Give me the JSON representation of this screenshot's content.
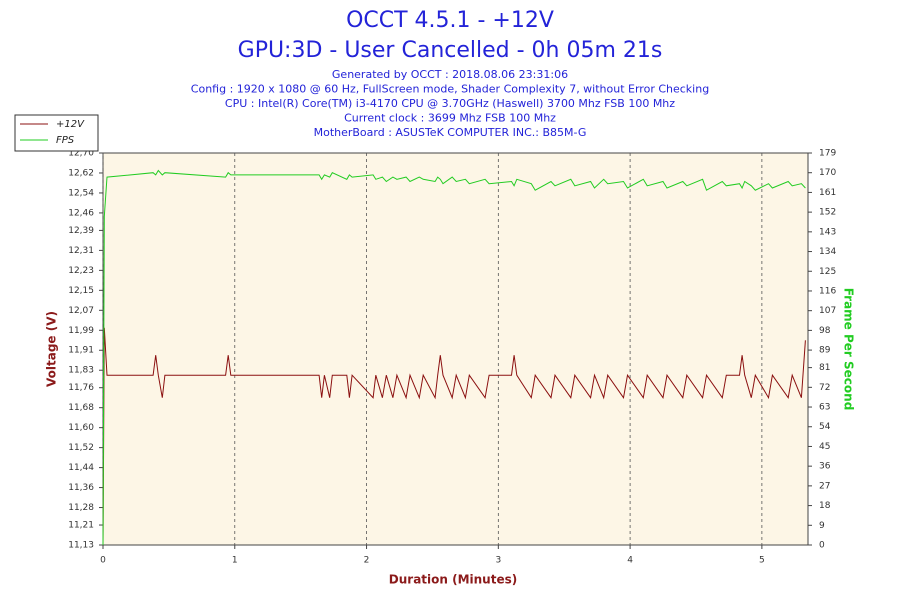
{
  "chart_data": {
    "type": "line",
    "title": "OCCT 4.5.1 - +12V",
    "title2": "GPU:3D - User Cancelled - 0h 05m 21s",
    "subtitle": [
      "Generated by OCCT : 2018.08.06 23:31:06",
      "Config : 1920 x 1080 @ 60 Hz, FullScreen mode, Shader Complexity 7, without Error Checking",
      "CPU : Intel(R) Core(TM) i3-4170 CPU @ 3.70GHz (Haswell) 3700 Mhz FSB 100 Mhz",
      "Current clock : 3699 Mhz FSB 100 Mhz",
      "MotherBoard : ASUSTeK COMPUTER INC.: B85M-G"
    ],
    "x_label": "Duration (Minutes)",
    "y_label": "Voltage (V)",
    "y2_label": "Frame Per Second",
    "legend": "upper-left",
    "grid": "x",
    "xlim": [
      0,
      5.35
    ],
    "xticks": [
      0,
      1,
      2,
      3,
      4,
      5
    ],
    "ylim": [
      11.13,
      12.7
    ],
    "yticks": [
      {
        "value": 11.13,
        "label": "11,13"
      },
      {
        "value": 11.21,
        "label": "11,21"
      },
      {
        "value": 11.28,
        "label": "11,28"
      },
      {
        "value": 11.36,
        "label": "11,36"
      },
      {
        "value": 11.44,
        "label": "11,44"
      },
      {
        "value": 11.52,
        "label": "11,52"
      },
      {
        "value": 11.6,
        "label": "11,60"
      },
      {
        "value": 11.68,
        "label": "11,68"
      },
      {
        "value": 11.76,
        "label": "11,76"
      },
      {
        "value": 11.83,
        "label": "11,83"
      },
      {
        "value": 11.91,
        "label": "11,91"
      },
      {
        "value": 11.99,
        "label": "11,99"
      },
      {
        "value": 12.07,
        "label": "12,07"
      },
      {
        "value": 12.15,
        "label": "12,15"
      },
      {
        "value": 12.23,
        "label": "12,23"
      },
      {
        "value": 12.31,
        "label": "12,31"
      },
      {
        "value": 12.39,
        "label": "12,39"
      },
      {
        "value": 12.46,
        "label": "12,46"
      },
      {
        "value": 12.54,
        "label": "12,54"
      },
      {
        "value": 12.62,
        "label": "12,62"
      },
      {
        "value": 12.7,
        "label": "12,70"
      }
    ],
    "y2lim": [
      0,
      179
    ],
    "y2ticks": [
      0,
      9,
      18,
      27,
      36,
      45,
      54,
      63,
      72,
      81,
      89,
      98,
      107,
      116,
      125,
      134,
      143,
      152,
      161,
      170,
      179
    ],
    "x": [
      0,
      0.01,
      0.03,
      0.38,
      0.4,
      0.42,
      0.45,
      0.47,
      0.93,
      0.95,
      0.97,
      1.64,
      1.66,
      1.68,
      1.72,
      1.74,
      1.85,
      1.87,
      1.89,
      2.05,
      2.07,
      2.12,
      2.15,
      2.2,
      2.23,
      2.3,
      2.33,
      2.4,
      2.43,
      2.52,
      2.54,
      2.56,
      2.58,
      2.65,
      2.68,
      2.75,
      2.78,
      2.9,
      2.93,
      3.1,
      3.12,
      3.14,
      3.25,
      3.28,
      3.4,
      3.43,
      3.55,
      3.58,
      3.7,
      3.73,
      3.8,
      3.83,
      3.95,
      3.98,
      4.1,
      4.13,
      4.25,
      4.28,
      4.4,
      4.43,
      4.55,
      4.58,
      4.7,
      4.73,
      4.83,
      4.85,
      4.87,
      4.92,
      4.95,
      5.05,
      5.08,
      5.2,
      5.23,
      5.3,
      5.33
    ],
    "series": [
      {
        "name": "+12V",
        "color": "#8b1010",
        "axis": "y",
        "values": [
          11.13,
          12.0,
          11.81,
          11.81,
          11.89,
          11.81,
          11.72,
          11.81,
          11.81,
          11.89,
          11.81,
          11.81,
          11.72,
          11.81,
          11.72,
          11.81,
          11.81,
          11.72,
          11.81,
          11.72,
          11.81,
          11.72,
          11.81,
          11.72,
          11.81,
          11.72,
          11.81,
          11.72,
          11.81,
          11.72,
          11.81,
          11.89,
          11.81,
          11.72,
          11.81,
          11.72,
          11.81,
          11.72,
          11.81,
          11.81,
          11.89,
          11.81,
          11.72,
          11.81,
          11.72,
          11.81,
          11.72,
          11.81,
          11.72,
          11.81,
          11.72,
          11.81,
          11.72,
          11.81,
          11.72,
          11.81,
          11.72,
          11.81,
          11.72,
          11.81,
          11.72,
          11.81,
          11.72,
          11.81,
          11.81,
          11.89,
          11.81,
          11.72,
          11.81,
          11.72,
          11.81,
          11.72,
          11.81,
          11.72,
          11.95
        ]
      },
      {
        "name": "FPS",
        "color": "#22cc22",
        "axis": "y2",
        "values": [
          0,
          150,
          168,
          170,
          169,
          171,
          169,
          170,
          168,
          170,
          169,
          169,
          167,
          169,
          168,
          170,
          167,
          169,
          168,
          169,
          167,
          168,
          166,
          168,
          167,
          168,
          166,
          168,
          167,
          166,
          168,
          167,
          165,
          168,
          166,
          167,
          165,
          167,
          165,
          166,
          164,
          167,
          165,
          162,
          166,
          164,
          167,
          164,
          166,
          163,
          167,
          165,
          166,
          163,
          167,
          164,
          166,
          163,
          166,
          164,
          167,
          162,
          166,
          164,
          165,
          163,
          166,
          164,
          162,
          165,
          163,
          166,
          164,
          165,
          163
        ]
      }
    ]
  }
}
